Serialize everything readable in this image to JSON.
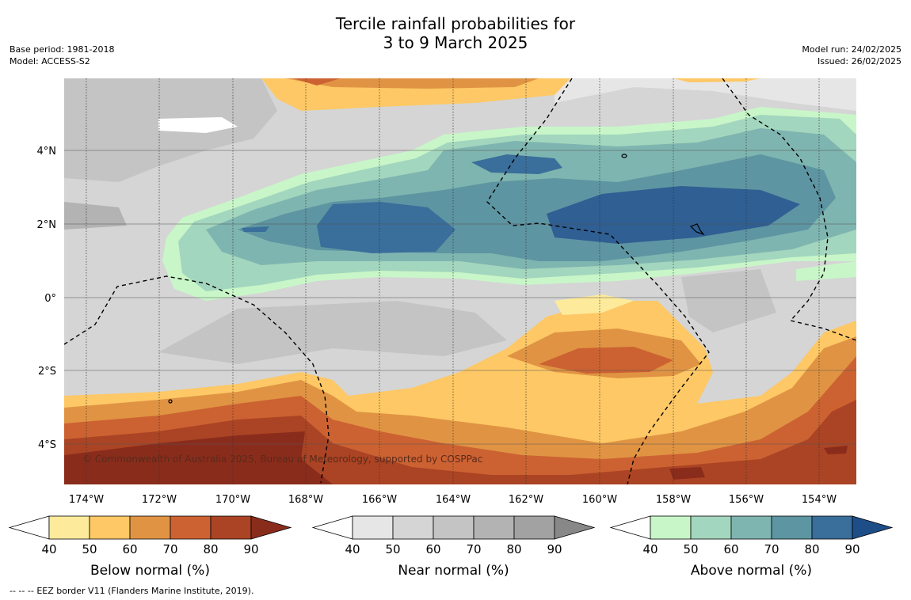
{
  "header": {
    "title_line1": "Tercile rainfall probabilities for",
    "title_line2": "3 to 9 March 2025",
    "base_period": "Base period: 1981-2018",
    "model": "Model: ACCESS-S2",
    "model_run": "Model run: 24/02/2025",
    "issued": "Issued: 26/02/2025"
  },
  "map": {
    "copyright": "© Commonwealth of Australia 2025, Bureau of Meteorology, supported by COSPPac",
    "lon_labels": [
      "174°W",
      "172°W",
      "170°W",
      "168°W",
      "166°W",
      "164°W",
      "162°W",
      "160°W",
      "158°W",
      "156°W",
      "154°W"
    ],
    "lat_labels": [
      "4°N",
      "2°N",
      "0°",
      "2°S",
      "4°S"
    ]
  },
  "colorbars": [
    {
      "label": "Below normal (%)",
      "ticks": [
        "40",
        "50",
        "60",
        "70",
        "80",
        "90"
      ],
      "colors": [
        "#fdeb9b",
        "#fdc865",
        "#e09443",
        "#cc6232",
        "#ab4424",
        "#8a2c1c"
      ]
    },
    {
      "label": "Near normal (%)",
      "ticks": [
        "40",
        "50",
        "60",
        "70",
        "80",
        "90"
      ],
      "colors": [
        "#e6e6e6",
        "#d5d5d5",
        "#c4c4c4",
        "#b3b3b3",
        "#a2a2a2",
        "#888888"
      ]
    },
    {
      "label": "Above normal (%)",
      "ticks": [
        "40",
        "50",
        "60",
        "70",
        "80",
        "90"
      ],
      "colors": [
        "#c8f6c8",
        "#a3d6be",
        "#7fb5b0",
        "#5e95a2",
        "#3a6e9b",
        "#1d4e88"
      ]
    }
  ],
  "footer": {
    "legend_symbol": "-- -- --",
    "legend_text": "EEZ border V11 (Flanders Marine Institute, 2019)."
  }
}
